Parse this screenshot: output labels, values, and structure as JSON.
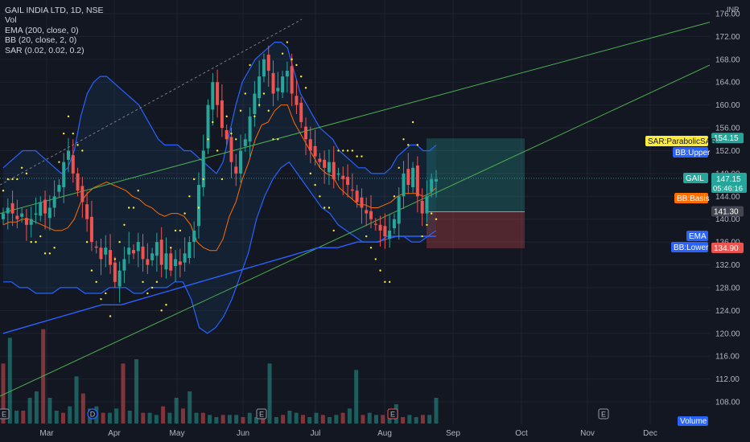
{
  "legend": {
    "title": "GAIL INDIA LTD, 1D, NSE",
    "lines": [
      "Vol",
      "EMA (200, close, 0)",
      "BB (20, close, 2, 0)",
      "SAR (0.02, 0.02, 0.2)"
    ]
  },
  "currency": "INR",
  "tags": {
    "sar_label": "SAR:ParabolicSAR",
    "bb_upper_label": "BB:Upper",
    "bb_basis_label": "BB:Basis",
    "ema_label": "EMA",
    "bb_lower_label": "BB:Lower",
    "gail_label": "GAIL",
    "gail_price": "147.15",
    "countdown": "05:46:16",
    "price_154": "154.15",
    "price_141": "141.30",
    "price_134": "134.90",
    "volume_label": "Volume"
  },
  "colors": {
    "up": "#26a69a",
    "down": "#ef5350",
    "bb": "#2962ff",
    "ema": "#2962ff",
    "basis": "#ff6d00",
    "channel": "#4caf50",
    "sar": "#ffeb3b"
  },
  "chart_data": {
    "type": "candlestick",
    "title": "GAIL INDIA LTD, 1D, NSE",
    "y_axis": {
      "min": 104,
      "max": 176,
      "ticks": [
        108,
        112,
        116,
        120,
        124,
        128,
        132,
        136,
        140,
        144,
        148,
        152,
        156,
        160,
        164,
        168,
        172,
        176
      ]
    },
    "x_axis": {
      "labels": [
        "Mar",
        "Apr",
        "May",
        "Jun",
        "Jul",
        "Aug",
        "Sep",
        "Oct",
        "Nov",
        "Dec"
      ]
    },
    "current_price": 147.15,
    "position": {
      "entry": 141.3,
      "target": 154.15,
      "stop": 134.9
    },
    "close_series": [
      141,
      142,
      141,
      140,
      141,
      139,
      140,
      141,
      143,
      141,
      142,
      144,
      146,
      150,
      152,
      148,
      145,
      143,
      140,
      136,
      135,
      133,
      135,
      132,
      129,
      131,
      133,
      135,
      134,
      136,
      133,
      132,
      134,
      136,
      132,
      134,
      131,
      133,
      132,
      134,
      136,
      138,
      146,
      152,
      160,
      164,
      160,
      156,
      154,
      150,
      148,
      152,
      154,
      158,
      162,
      165,
      168,
      166,
      162,
      163,
      165,
      166,
      162,
      160,
      157,
      154,
      152,
      151,
      150,
      149,
      150,
      147,
      148,
      147,
      146,
      145,
      143,
      142,
      141,
      140,
      139,
      138,
      137,
      138,
      140,
      144,
      148,
      146,
      149,
      144,
      141,
      144,
      147,
      147
    ],
    "bb_upper": [
      149,
      150,
      151,
      152,
      152,
      152,
      151,
      150,
      149,
      148,
      149,
      152,
      158,
      162,
      164,
      165,
      165,
      164,
      163,
      162,
      161,
      160,
      158,
      156,
      154,
      153,
      153,
      153,
      152,
      152,
      151,
      150,
      149,
      148,
      150,
      155,
      160,
      164,
      166,
      168,
      169,
      170,
      171,
      171,
      170,
      166,
      162,
      160,
      158,
      156,
      155,
      154,
      152,
      151,
      150,
      149,
      149,
      148,
      148,
      148,
      149,
      151,
      152,
      153,
      153,
      152,
      152,
      153
    ],
    "bb_lower": [
      129,
      129,
      128,
      128,
      127,
      127,
      127,
      128,
      128,
      128,
      127,
      127,
      127,
      128,
      128,
      128,
      127,
      127,
      128,
      128,
      128,
      129,
      129,
      126,
      121,
      120,
      121,
      123,
      126,
      130,
      134,
      140,
      144,
      147,
      149,
      150,
      148,
      146,
      144,
      142,
      141,
      139,
      138,
      137,
      136,
      136,
      136,
      137,
      137,
      137,
      136,
      136,
      137,
      138
    ],
    "ema_200": [
      120,
      121,
      122,
      123,
      124,
      125,
      125,
      126,
      127,
      128,
      129,
      130,
      131,
      132,
      133,
      134,
      135,
      135,
      136,
      136,
      137,
      137,
      137
    ],
    "volume": [
      28,
      40,
      6,
      6,
      12,
      15,
      44,
      12,
      6,
      5,
      8,
      22,
      14,
      7,
      8,
      5,
      5,
      7,
      28,
      6,
      30,
      5,
      5,
      4,
      8,
      5,
      12,
      7,
      15,
      5,
      5,
      4,
      3,
      4,
      4,
      4,
      3,
      5,
      3,
      4,
      28,
      3,
      4,
      6,
      5,
      4,
      3,
      5,
      4,
      3,
      4,
      5,
      7,
      25,
      4,
      5,
      4,
      4,
      6,
      9,
      3,
      4,
      3,
      4,
      4,
      12
    ]
  }
}
